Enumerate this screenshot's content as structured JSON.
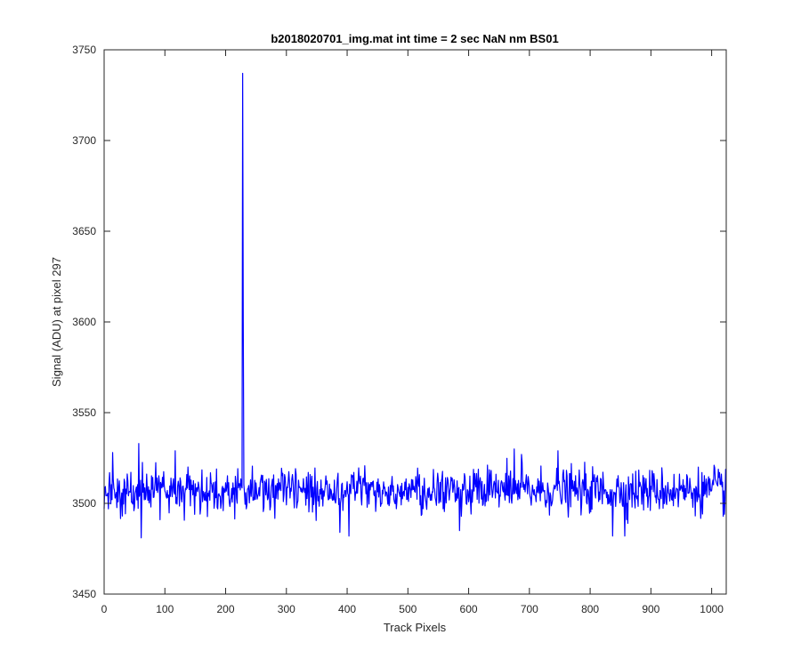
{
  "chart_data": {
    "type": "line",
    "title": "b2018020701_img.mat int time = 2 sec  NaN nm BS01",
    "xlabel": "Track Pixels",
    "ylabel": "Signal (ADU) at pixel 297",
    "xlim": [
      0,
      1024
    ],
    "ylim": [
      3450,
      3750
    ],
    "xticks": [
      0,
      100,
      200,
      300,
      400,
      500,
      600,
      700,
      800,
      900,
      1000
    ],
    "yticks": [
      3450,
      3500,
      3550,
      3600,
      3650,
      3700,
      3750
    ],
    "grid": false,
    "legend": "none",
    "series": [
      {
        "color": "#0000ff",
        "noise_baseline": 3507,
        "noise_std": 6,
        "noise_min": 3481,
        "noise_max": 3533,
        "peaks": [
          {
            "x": 228,
            "y": 3737
          },
          {
            "x": 229,
            "y": 3600
          }
        ],
        "sample_points": [
          [
            0,
            3497
          ],
          [
            10,
            3509
          ],
          [
            14,
            3528
          ],
          [
            30,
            3493
          ],
          [
            57,
            3533
          ],
          [
            61,
            3481
          ],
          [
            92,
            3491
          ],
          [
            117,
            3529
          ],
          [
            228,
            3737
          ],
          [
            388,
            3484
          ],
          [
            403,
            3482
          ],
          [
            585,
            3485
          ],
          [
            675,
            3530
          ],
          [
            687,
            3527
          ],
          [
            747,
            3529
          ],
          [
            837,
            3482
          ],
          [
            857,
            3482
          ],
          [
            1004,
            3521
          ],
          [
            1021,
            3494
          ],
          [
            1023,
            3519
          ]
        ]
      }
    ]
  }
}
